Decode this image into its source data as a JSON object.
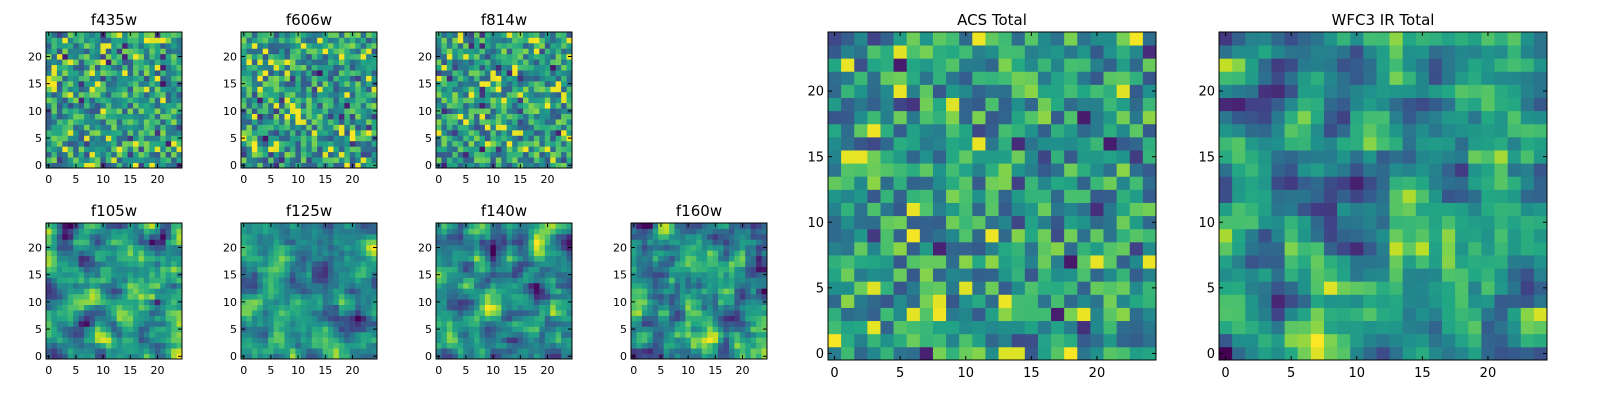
{
  "chart_data": [
    {
      "type": "heatmap",
      "title": "f435w",
      "x_ticks": [
        "0",
        "5",
        "10",
        "15",
        "20"
      ],
      "y_ticks": [
        "0",
        "5",
        "10",
        "15",
        "20"
      ],
      "xlim": [
        0,
        25
      ],
      "ylim": [
        0,
        25
      ],
      "grid": false,
      "seed": 11,
      "smooth": 0,
      "colormap": "viridis"
    },
    {
      "type": "heatmap",
      "title": "f606w",
      "x_ticks": [
        "0",
        "5",
        "10",
        "15",
        "20"
      ],
      "y_ticks": [
        "0",
        "5",
        "10",
        "15",
        "20"
      ],
      "xlim": [
        0,
        25
      ],
      "ylim": [
        0,
        25
      ],
      "grid": false,
      "seed": 23,
      "smooth": 0,
      "colormap": "viridis"
    },
    {
      "type": "heatmap",
      "title": "f814w",
      "x_ticks": [
        "0",
        "5",
        "10",
        "15",
        "20"
      ],
      "y_ticks": [
        "0",
        "5",
        "10",
        "15",
        "20"
      ],
      "xlim": [
        0,
        25
      ],
      "ylim": [
        0,
        25
      ],
      "grid": false,
      "seed": 37,
      "smooth": 0,
      "colormap": "viridis"
    },
    {
      "type": "heatmap",
      "title": "f105w",
      "x_ticks": [
        "0",
        "5",
        "10",
        "15",
        "20"
      ],
      "y_ticks": [
        "0",
        "5",
        "10",
        "15",
        "20"
      ],
      "xlim": [
        0,
        25
      ],
      "ylim": [
        0,
        25
      ],
      "grid": false,
      "seed": 41,
      "smooth": 1,
      "colormap": "viridis"
    },
    {
      "type": "heatmap",
      "title": "f125w",
      "x_ticks": [
        "0",
        "5",
        "10",
        "15",
        "20"
      ],
      "y_ticks": [
        "0",
        "5",
        "10",
        "15",
        "20"
      ],
      "xlim": [
        0,
        25
      ],
      "ylim": [
        0,
        25
      ],
      "grid": false,
      "seed": 53,
      "smooth": 1,
      "colormap": "viridis"
    },
    {
      "type": "heatmap",
      "title": "f140w",
      "x_ticks": [
        "0",
        "5",
        "10",
        "15",
        "20"
      ],
      "y_ticks": [
        "0",
        "5",
        "10",
        "15",
        "20"
      ],
      "xlim": [
        0,
        25
      ],
      "ylim": [
        0,
        25
      ],
      "grid": false,
      "seed": 67,
      "smooth": 1,
      "colormap": "viridis"
    },
    {
      "type": "heatmap",
      "title": "f160w",
      "x_ticks": [
        "0",
        "5",
        "10",
        "15",
        "20"
      ],
      "y_ticks": [
        "0",
        "5",
        "10",
        "15",
        "20"
      ],
      "xlim": [
        0,
        25
      ],
      "ylim": [
        0,
        25
      ],
      "grid": false,
      "seed": 79,
      "smooth": 1,
      "colormap": "viridis"
    },
    {
      "type": "heatmap",
      "title": "ACS Total",
      "x_ticks": [
        "0",
        "5",
        "10",
        "15",
        "20"
      ],
      "y_ticks": [
        "0",
        "5",
        "10",
        "15",
        "20"
      ],
      "xlim": [
        0,
        25
      ],
      "ylim": [
        0,
        25
      ],
      "grid": false,
      "seed": 83,
      "smooth": 0,
      "colormap": "viridis"
    },
    {
      "type": "heatmap",
      "title": "WFC3 IR Total",
      "x_ticks": [
        "0",
        "5",
        "10",
        "15",
        "20"
      ],
      "y_ticks": [
        "0",
        "5",
        "10",
        "15",
        "20"
      ],
      "xlim": [
        0,
        25
      ],
      "ylim": [
        0,
        25
      ],
      "grid": false,
      "seed": 97,
      "smooth": 1,
      "colormap": "viridis"
    }
  ],
  "colors": {
    "frame": "#000000",
    "background": "#ffffff",
    "colormap_low": "#440154",
    "colormap_mid": "#21918c",
    "colormap_high": "#fde725"
  }
}
